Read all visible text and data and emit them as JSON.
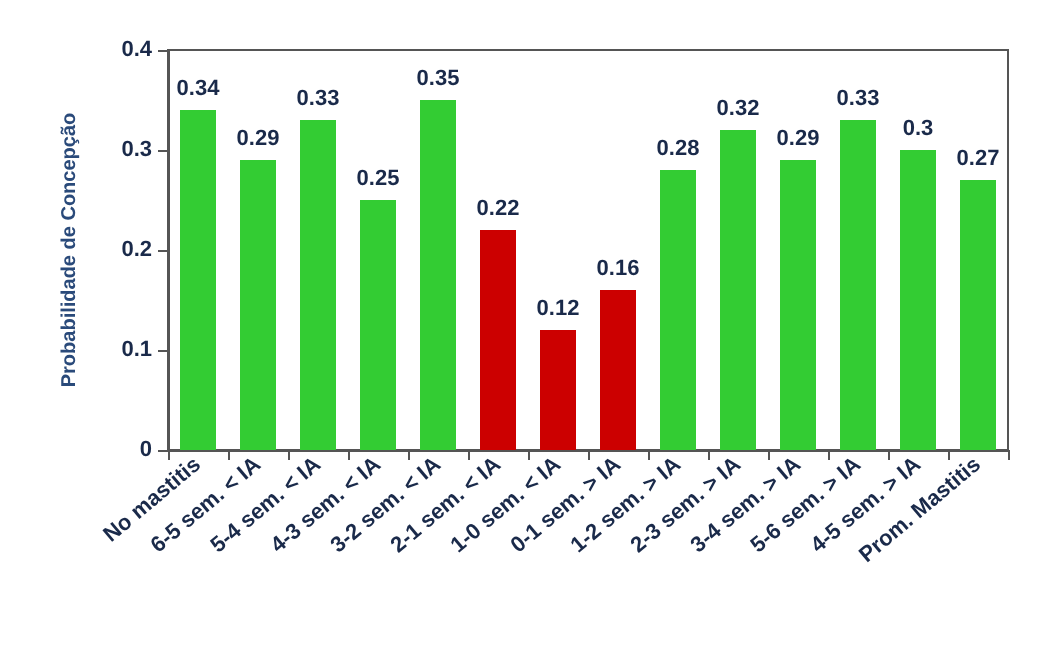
{
  "chart_data": {
    "type": "bar",
    "ylabel": "Probabilidade de Concepção",
    "categories": [
      "No mastitis",
      "6-5 sem. < IA",
      "5-4 sem. < IA",
      "4-3 sem. < IA",
      "3-2 sem. < IA",
      "2-1 sem. < IA",
      "1-0 sem. < IA",
      "0-1 sem. > IA",
      "1-2 sem. > IA",
      "2-3 sem. > IA",
      "3-4 sem. > IA",
      "5-6 sem. > IA",
      "4-5 sem. > IA",
      "Prom. Mastitis"
    ],
    "values": [
      0.34,
      0.29,
      0.33,
      0.25,
      0.35,
      0.22,
      0.12,
      0.16,
      0.28,
      0.32,
      0.29,
      0.33,
      0.3,
      0.27
    ],
    "colors": [
      "#33cc33",
      "#33cc33",
      "#33cc33",
      "#33cc33",
      "#33cc33",
      "#cc0000",
      "#cc0000",
      "#cc0000",
      "#33cc33",
      "#33cc33",
      "#33cc33",
      "#33cc33",
      "#33cc33",
      "#33cc33"
    ],
    "ylim": [
      0,
      0.4
    ],
    "yticks": [
      0,
      0.1,
      0.2,
      0.3,
      0.4
    ],
    "grid": false,
    "data_labels": true
  }
}
